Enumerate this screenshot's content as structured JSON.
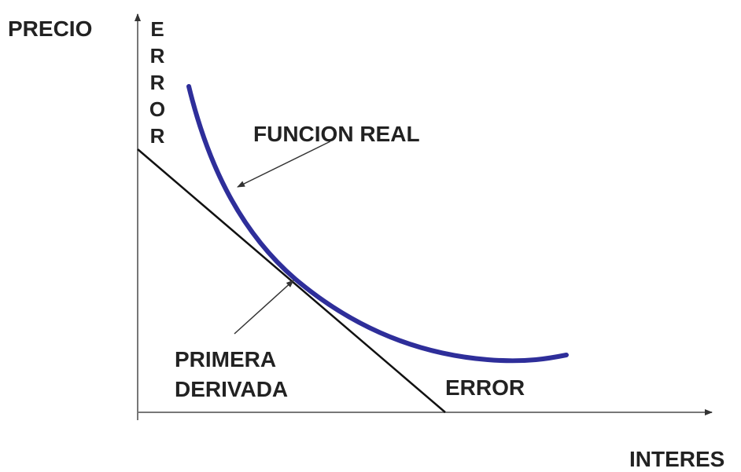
{
  "axes": {
    "y_label": "PRECIO",
    "x_label": "INTERES"
  },
  "error_vertical": "ERROR",
  "curve_label": "FUNCION REAL",
  "tangent_label": {
    "lines": [
      "PRIMERA",
      "DERIVADA"
    ]
  },
  "error_label": "ERROR"
}
